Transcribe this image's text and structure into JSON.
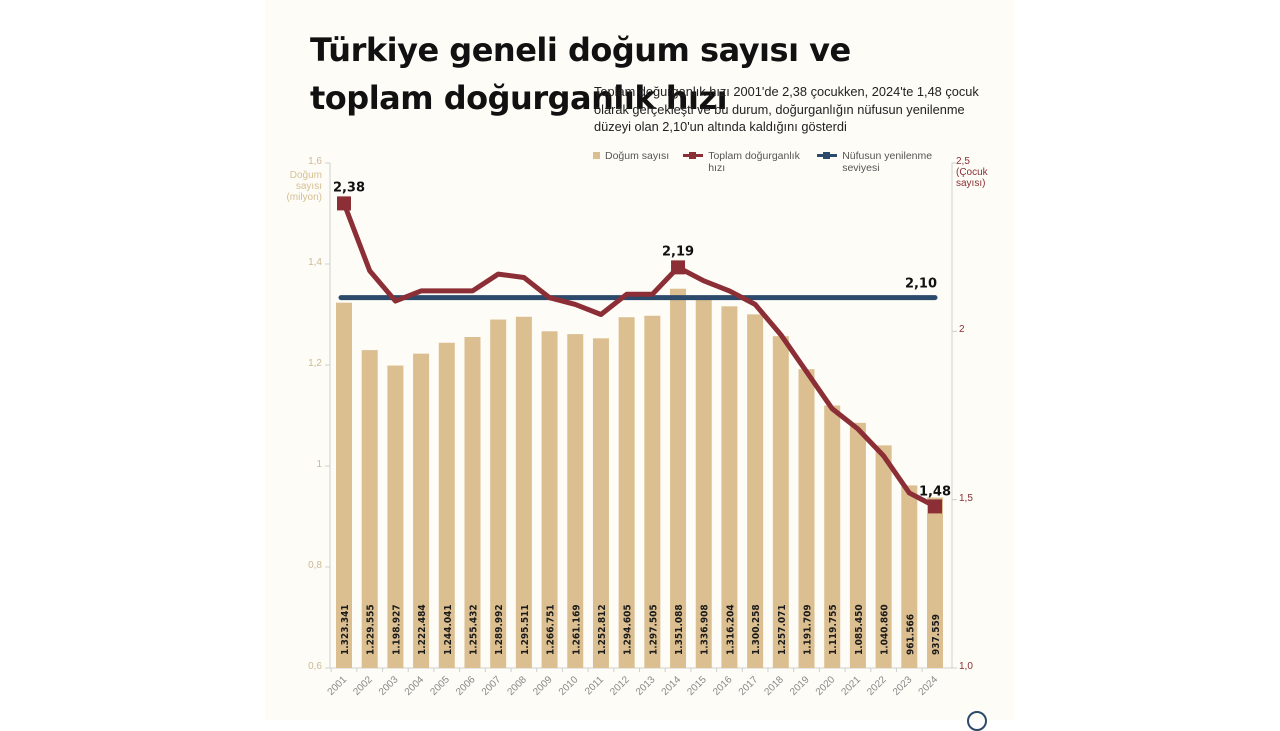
{
  "header": {
    "title": "Türkiye geneli doğum sayısı ve toplam doğurganlık hızı",
    "subtitle": "Toplam doğurganlık hızı 2001'de 2,38 çocukken, 2024'te 1,48 çocuk olarak gerçekleşti ve bu durum, doğurganlığın nüfusun yenilenme düzeyi olan 2,10'un altında kaldığını gösterdi"
  },
  "legend": {
    "births": "Doğum sayısı",
    "tfr": "Toplam doğurganlık hızı",
    "replacement": "Nüfusun yenilenme seviyesi"
  },
  "axes": {
    "left_title": "Doğum sayısı (milyon)",
    "right_title": "(Çocuk sayısı)",
    "left_ticks": [
      "1,6",
      "1,4",
      "1,2",
      "1",
      "0,8",
      "0,6"
    ],
    "right_ticks": [
      "2,5",
      "2",
      "1,5",
      "1,0"
    ]
  },
  "annotations": {
    "tfr_2001": "2,38",
    "tfr_2014": "2,19",
    "tfr_2024": "1,48",
    "replacement": "2,10"
  },
  "colors": {
    "bar": "#dcbf91",
    "tfr_line": "#8b2e36",
    "replacement_line": "#2c4a6b",
    "background": "#fdfcf6"
  },
  "chart_data": {
    "type": "bar",
    "title": "Türkiye geneli doğum sayısı ve toplam doğurganlık hızı",
    "xlabel": "",
    "ylabel": "Doğum sayısı (milyon)",
    "y2label": "Çocuk sayısı",
    "ylim": [
      0.6,
      1.6
    ],
    "y2lim": [
      1.0,
      2.5
    ],
    "grid": false,
    "legend_position": "top",
    "categories": [
      "2001",
      "2002",
      "2003",
      "2004",
      "2005",
      "2006",
      "2007",
      "2008",
      "2009",
      "2010",
      "2011",
      "2012",
      "2013",
      "2014",
      "2015",
      "2016",
      "2017",
      "2018",
      "2019",
      "2020",
      "2021",
      "2022",
      "2023",
      "2024"
    ],
    "series": [
      {
        "name": "Doğum sayısı",
        "type": "bar",
        "axis": "left",
        "values": [
          1323341,
          1229555,
          1198927,
          1222484,
          1244041,
          1255432,
          1289992,
          1295511,
          1266751,
          1261169,
          1252812,
          1294605,
          1297505,
          1351088,
          1336908,
          1316204,
          1300258,
          1257071,
          1191709,
          1119755,
          1085450,
          1040860,
          961566,
          937559
        ],
        "labels": [
          "1.323.341",
          "1.229.555",
          "1.198.927",
          "1.222.484",
          "1.244.041",
          "1.255.432",
          "1.289.992",
          "1.295.511",
          "1.266.751",
          "1.261.169",
          "1.252.812",
          "1.294.605",
          "1.297.505",
          "1.351.088",
          "1.336.908",
          "1.316.204",
          "1.300.258",
          "1.257.071",
          "1.191.709",
          "1.119.755",
          "1.085.450",
          "1.040.860",
          "961.566",
          "937.559"
        ]
      },
      {
        "name": "Toplam doğurganlık hızı",
        "type": "line",
        "axis": "right",
        "values": [
          2.38,
          2.18,
          2.09,
          2.12,
          2.12,
          2.12,
          2.17,
          2.16,
          2.1,
          2.08,
          2.05,
          2.11,
          2.11,
          2.19,
          2.15,
          2.12,
          2.08,
          1.99,
          1.88,
          1.77,
          1.71,
          1.63,
          1.52,
          1.48
        ]
      },
      {
        "name": "Nüfusun yenilenme seviyesi",
        "type": "line",
        "axis": "right",
        "values": [
          2.1,
          2.1,
          2.1,
          2.1,
          2.1,
          2.1,
          2.1,
          2.1,
          2.1,
          2.1,
          2.1,
          2.1,
          2.1,
          2.1,
          2.1,
          2.1,
          2.1,
          2.1,
          2.1,
          2.1,
          2.1,
          2.1,
          2.1,
          2.1
        ]
      }
    ]
  }
}
